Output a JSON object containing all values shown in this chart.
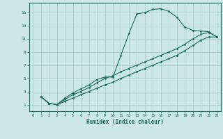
{
  "title": "",
  "xlabel": "Humidex (Indice chaleur)",
  "background_color": "#cce8e6",
  "grid_color": "#aacfcc",
  "line_color": "#1a6b5a",
  "xlim": [
    -0.5,
    23.5
  ],
  "ylim": [
    0,
    16.5
  ],
  "xticks": [
    0,
    1,
    2,
    3,
    4,
    5,
    6,
    7,
    8,
    9,
    10,
    11,
    12,
    13,
    14,
    15,
    16,
    17,
    18,
    19,
    20,
    21,
    22,
    23
  ],
  "yticks": [
    1,
    3,
    5,
    7,
    9,
    11,
    13,
    15
  ],
  "line1_x": [
    1,
    2,
    3,
    4,
    5,
    6,
    7,
    8,
    9,
    10,
    11,
    12,
    13,
    14,
    15,
    16,
    17,
    18,
    19,
    20,
    21,
    22,
    23
  ],
  "line1_y": [
    2.2,
    1.2,
    1.0,
    2.0,
    2.8,
    3.4,
    4.0,
    4.8,
    5.2,
    5.2,
    8.5,
    11.8,
    14.8,
    15.0,
    15.5,
    15.6,
    15.2,
    14.3,
    12.8,
    12.3,
    12.2,
    12.1,
    11.3
  ],
  "line2_x": [
    1,
    2,
    3,
    4,
    5,
    6,
    7,
    8,
    9,
    10,
    11,
    12,
    13,
    14,
    15,
    16,
    17,
    18,
    19,
    20,
    21,
    22,
    23
  ],
  "line2_y": [
    2.2,
    1.2,
    1.0,
    1.8,
    2.5,
    3.0,
    3.6,
    4.3,
    5.0,
    5.4,
    6.0,
    6.5,
    7.0,
    7.5,
    8.0,
    8.5,
    9.0,
    9.5,
    10.2,
    11.0,
    11.7,
    12.0,
    11.3
  ],
  "line3_x": [
    1,
    2,
    3,
    4,
    5,
    6,
    7,
    8,
    9,
    10,
    11,
    12,
    13,
    14,
    15,
    16,
    17,
    18,
    19,
    20,
    21,
    22,
    23
  ],
  "line3_y": [
    2.2,
    1.2,
    1.0,
    1.5,
    2.0,
    2.5,
    3.0,
    3.5,
    4.0,
    4.4,
    5.0,
    5.5,
    6.0,
    6.5,
    7.0,
    7.5,
    8.0,
    8.5,
    9.2,
    10.0,
    10.8,
    11.3,
    11.3
  ]
}
